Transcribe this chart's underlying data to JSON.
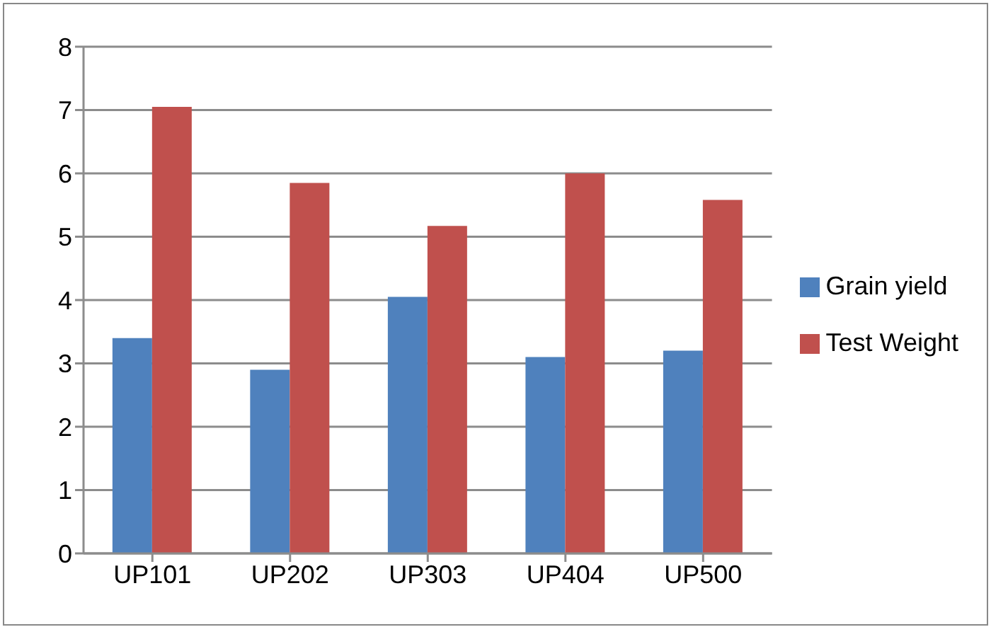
{
  "chart_data": {
    "type": "bar",
    "categories": [
      "UP101",
      "UP202",
      "UP303",
      "UP404",
      "UP500"
    ],
    "series": [
      {
        "name": "Grain yield",
        "color": "#4f81bd",
        "values": [
          3.4,
          2.9,
          4.05,
          3.1,
          3.2
        ]
      },
      {
        "name": "Test Weight",
        "color": "#c0504d",
        "values": [
          7.05,
          5.85,
          5.17,
          6.0,
          5.58
        ]
      }
    ],
    "ylim": [
      0,
      8
    ],
    "yticks": [
      0,
      1,
      2,
      3,
      4,
      5,
      6,
      7,
      8
    ],
    "grid": "y",
    "legend": "right"
  }
}
